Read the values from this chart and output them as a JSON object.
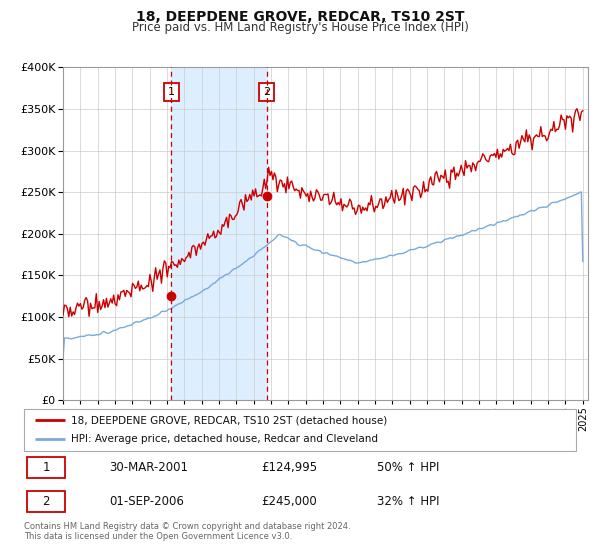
{
  "title": "18, DEEPDENE GROVE, REDCAR, TS10 2ST",
  "subtitle": "Price paid vs. HM Land Registry's House Price Index (HPI)",
  "legend_entry1": "18, DEEPDENE GROVE, REDCAR, TS10 2ST (detached house)",
  "legend_entry2": "HPI: Average price, detached house, Redcar and Cleveland",
  "sale1_date": "30-MAR-2001",
  "sale1_price": 124995,
  "sale1_label": "50% ↑ HPI",
  "sale2_date": "01-SEP-2006",
  "sale2_price": 245000,
  "sale2_label": "32% ↑ HPI",
  "footnote1": "Contains HM Land Registry data © Crown copyright and database right 2024.",
  "footnote2": "This data is licensed under the Open Government Licence v3.0.",
  "price_color": "#cc0000",
  "hpi_color": "#7aaadd",
  "shade_color": "#ddeeff",
  "ylim": [
    0,
    400000
  ],
  "yticks": [
    0,
    50000,
    100000,
    150000,
    200000,
    250000,
    300000,
    350000,
    400000
  ],
  "sale1_year": 2001.25,
  "sale2_year": 2006.75,
  "xmin": 1995.0,
  "xmax": 2025.3
}
